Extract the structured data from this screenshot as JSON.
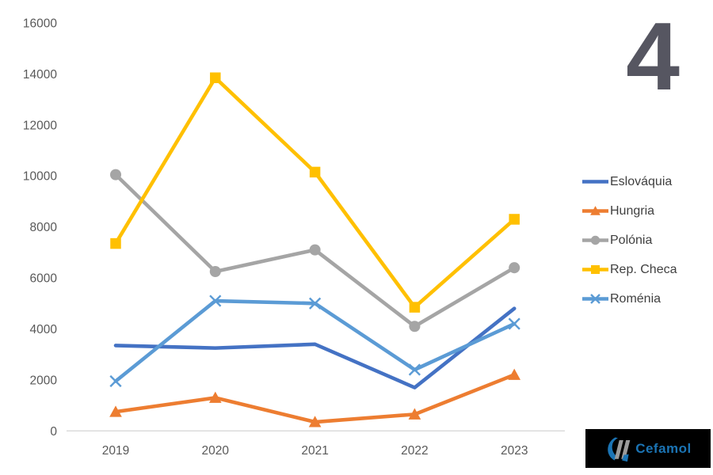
{
  "page_number": "4",
  "chart_data": {
    "type": "line",
    "categories": [
      "2019",
      "2020",
      "2021",
      "2022",
      "2023"
    ],
    "series": [
      {
        "name": "Eslováquia",
        "color": "#4472C4",
        "marker": "none",
        "values": [
          3350,
          3250,
          3400,
          1700,
          4800
        ]
      },
      {
        "name": "Hungria",
        "color": "#ED7D31",
        "marker": "triangle",
        "values": [
          750,
          1300,
          350,
          650,
          2200
        ]
      },
      {
        "name": "Polónia",
        "color": "#A5A5A5",
        "marker": "circle",
        "values": [
          10050,
          6250,
          7100,
          4100,
          6400
        ]
      },
      {
        "name": "Rep. Checa",
        "color": "#FFC000",
        "marker": "square",
        "values": [
          7350,
          13850,
          10150,
          4850,
          8300
        ]
      },
      {
        "name": "Roménia",
        "color": "#5B9BD5",
        "marker": "x",
        "values": [
          1950,
          5100,
          5000,
          2400,
          4200
        ]
      }
    ],
    "title": "",
    "xlabel": "",
    "ylabel": "",
    "ylim": [
      0,
      16000
    ],
    "ytick_step": 2000,
    "ytick_labels": [
      "0",
      "2000",
      "4000",
      "6000",
      "8000",
      "10000",
      "12000",
      "14000",
      "16000"
    ],
    "grid": false,
    "legend_position": "right",
    "axis_line_color": "#D9D9D9",
    "tick_label_color": "#595959"
  },
  "logo": {
    "text": "Cefamol",
    "text_color": "#1b74b4",
    "mark_blue": "#1b74b4",
    "mark_gray": "#9b9b9b",
    "background": "#000000"
  }
}
